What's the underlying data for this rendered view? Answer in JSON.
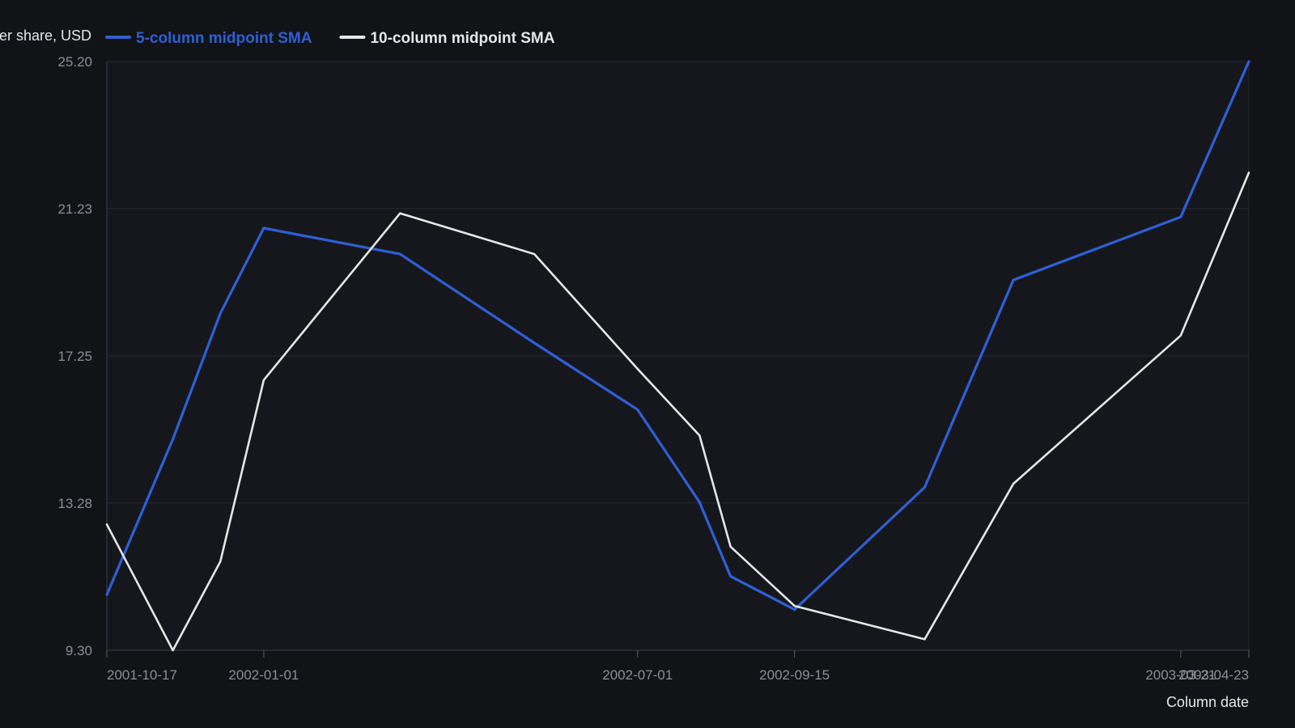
{
  "chart_data": {
    "type": "line",
    "ylabel": "Price per share, USD",
    "xlabel": "Column date",
    "ylim": [
      9.3,
      25.2
    ],
    "y_ticks": [
      "9.30",
      "13.28",
      "17.25",
      "21.23",
      "25.20"
    ],
    "x_ticks": [
      "2001-10-17",
      "2002-01-01",
      "2002-07-01",
      "2002-09-15",
      "2003-03-21",
      "2003-04-23"
    ],
    "x": [
      "2001-10-17",
      "2001-11-18",
      "2001-12-11",
      "2002-01-01",
      "2002-03-08",
      "2002-05-12",
      "2002-07-01",
      "2002-07-31",
      "2002-08-15",
      "2002-09-15",
      "2002-11-17",
      "2002-12-30",
      "2003-03-21",
      "2003-04-23"
    ],
    "grid": true,
    "legend_position": "top-left",
    "series": [
      {
        "name": "5-column midpoint SMA",
        "color": "#2f5fd6",
        "values": [
          10.8,
          15.0,
          18.4,
          20.7,
          20.0,
          17.6,
          15.8,
          13.3,
          11.3,
          10.4,
          13.7,
          19.3,
          21.0,
          25.2
        ]
      },
      {
        "name": "10-column midpoint SMA",
        "color": "#e6e6e6",
        "values": [
          12.7,
          9.3,
          11.7,
          16.6,
          21.1,
          20.0,
          16.9,
          15.1,
          12.1,
          10.5,
          9.6,
          13.8,
          17.8,
          22.2
        ]
      }
    ]
  }
}
